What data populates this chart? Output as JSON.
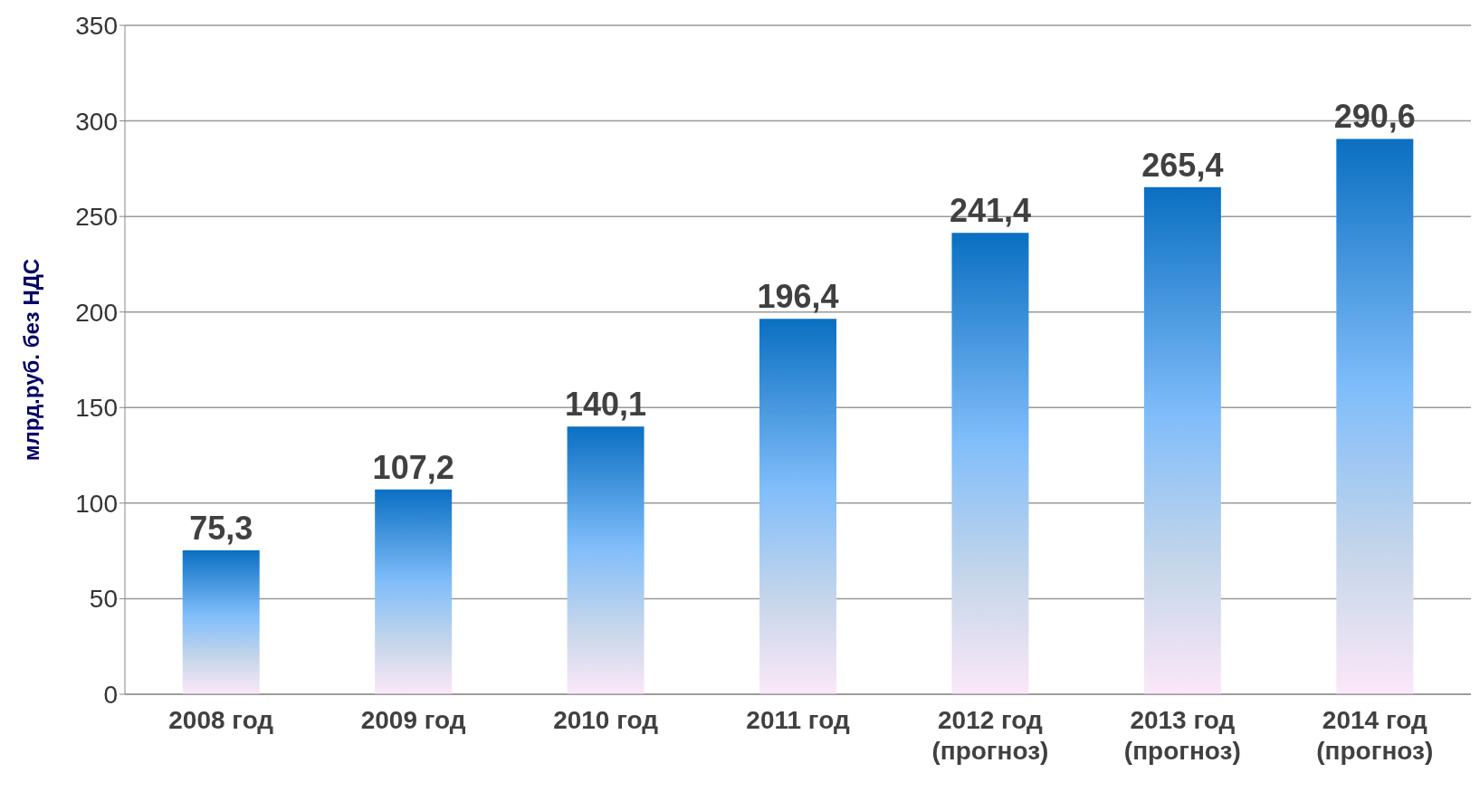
{
  "chart_data": {
    "type": "bar",
    "ylabel": "млрд.руб. без НДС",
    "categories": [
      "2008 год",
      "2009 год",
      "2010 год",
      "2011 год",
      "2012 год\n(прогноз)",
      "2013 год\n(прогноз)",
      "2014 год\n(прогноз)"
    ],
    "values": [
      75.3,
      107.2,
      140.1,
      196.4,
      241.4,
      265.4,
      290.6
    ],
    "value_labels": [
      "75,3",
      "107,2",
      "140,1",
      "196,4",
      "241,4",
      "265,4",
      "290,6"
    ],
    "color": "#0a6fc2",
    "ylim": [
      0,
      350
    ],
    "yticks": [
      0,
      50,
      100,
      150,
      200,
      250,
      300,
      350
    ],
    "grid": "y"
  }
}
